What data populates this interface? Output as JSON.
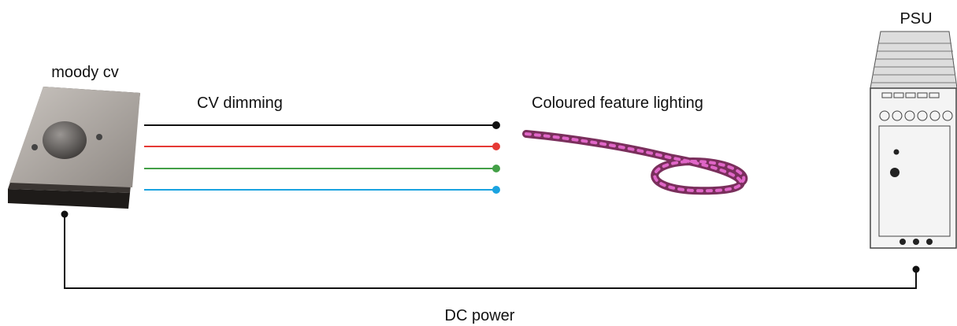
{
  "labels": {
    "dimmer": "moody cv",
    "wires": "CV dimming",
    "lighting": "Coloured feature lighting",
    "psu": "PSU",
    "power": "DC power"
  }
}
